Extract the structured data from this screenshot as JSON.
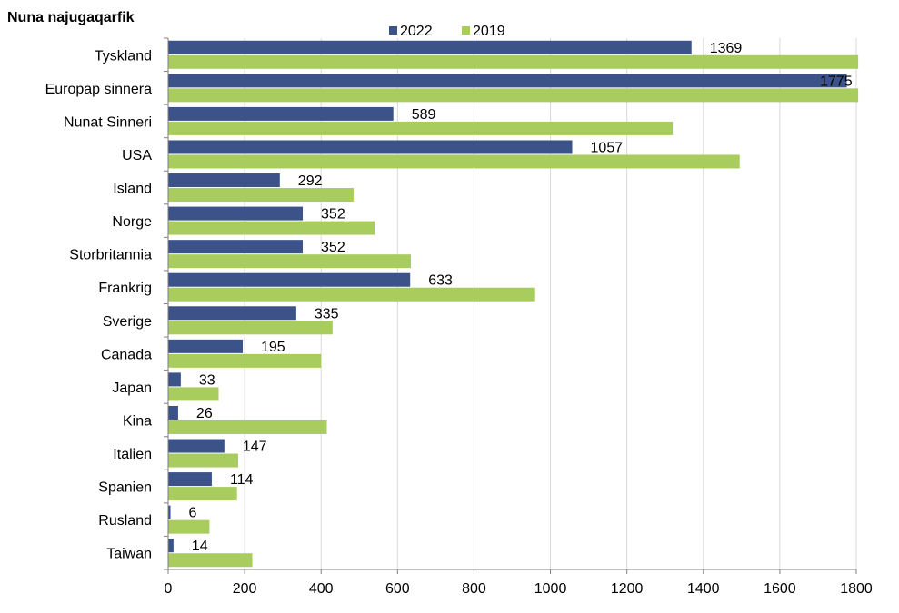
{
  "chart_data": {
    "type": "bar",
    "orientation": "horizontal",
    "title": "Nuna najugaqarfik",
    "categories": [
      "Tyskland",
      "Europap sinnera",
      "Nunat Sinneri",
      "USA",
      "Island",
      "Norge",
      "Storbritannia",
      "Frankrig",
      "Sverige",
      "Canada",
      "Japan",
      "Kina",
      "Italien",
      "Spanien",
      "Rusland",
      "Taiwan"
    ],
    "series": [
      {
        "name": "2022",
        "color": "#3b5388",
        "values": [
          1369,
          1775,
          589,
          1057,
          292,
          352,
          352,
          633,
          335,
          195,
          33,
          26,
          147,
          114,
          6,
          14
        ]
      },
      {
        "name": "2019",
        "color": "#a9cc5f",
        "values": [
          1805,
          1805,
          1320,
          1495,
          485,
          540,
          635,
          960,
          430,
          400,
          132,
          415,
          183,
          180,
          108,
          220
        ]
      }
    ],
    "data_labels": [
      "1369",
      "1775",
      "589",
      "1057",
      "292",
      "352",
      "352",
      "633",
      "335",
      "195",
      "33",
      "26",
      "147",
      "114",
      "6",
      "14"
    ],
    "xlim": [
      0,
      1800
    ],
    "x_ticks": [
      "0",
      "200",
      "400",
      "600",
      "800",
      "1000",
      "1200",
      "1400",
      "1600",
      "1800"
    ],
    "grid": "vertical",
    "legend_position": "top"
  }
}
